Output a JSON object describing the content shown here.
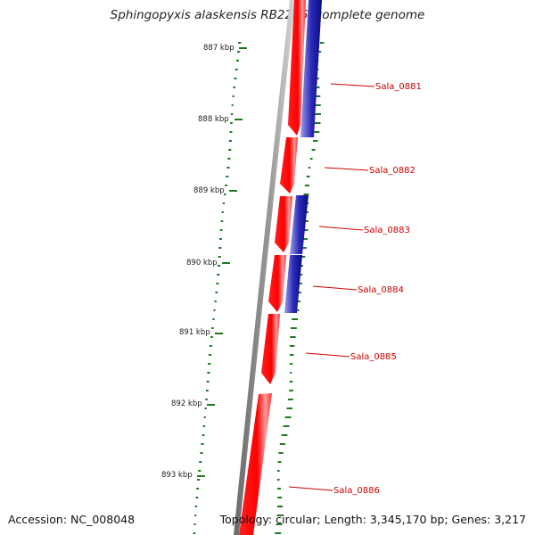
{
  "title": "Sphingopyxis alaskensis RB2256, complete genome",
  "accession": "Accession: NC_008048",
  "topology": "Topology: circular; Length: 3,345,170 bp; Genes: 3,217",
  "ticks": [
    "887 kbp",
    "888 kbp",
    "889 kbp",
    "890 kbp",
    "891 kbp",
    "892 kbp",
    "893 kbp"
  ],
  "genes": [
    "Sala_0881",
    "Sala_0882",
    "Sala_0883",
    "Sala_0884",
    "Sala_0885",
    "Sala_0886"
  ],
  "colors": {
    "forward_gene": "#ff0000",
    "reverse_gene": "#1a1aa6",
    "backbone": "#808080",
    "gc_ticks": "#1f7a1f",
    "label": "#cc0000"
  }
}
